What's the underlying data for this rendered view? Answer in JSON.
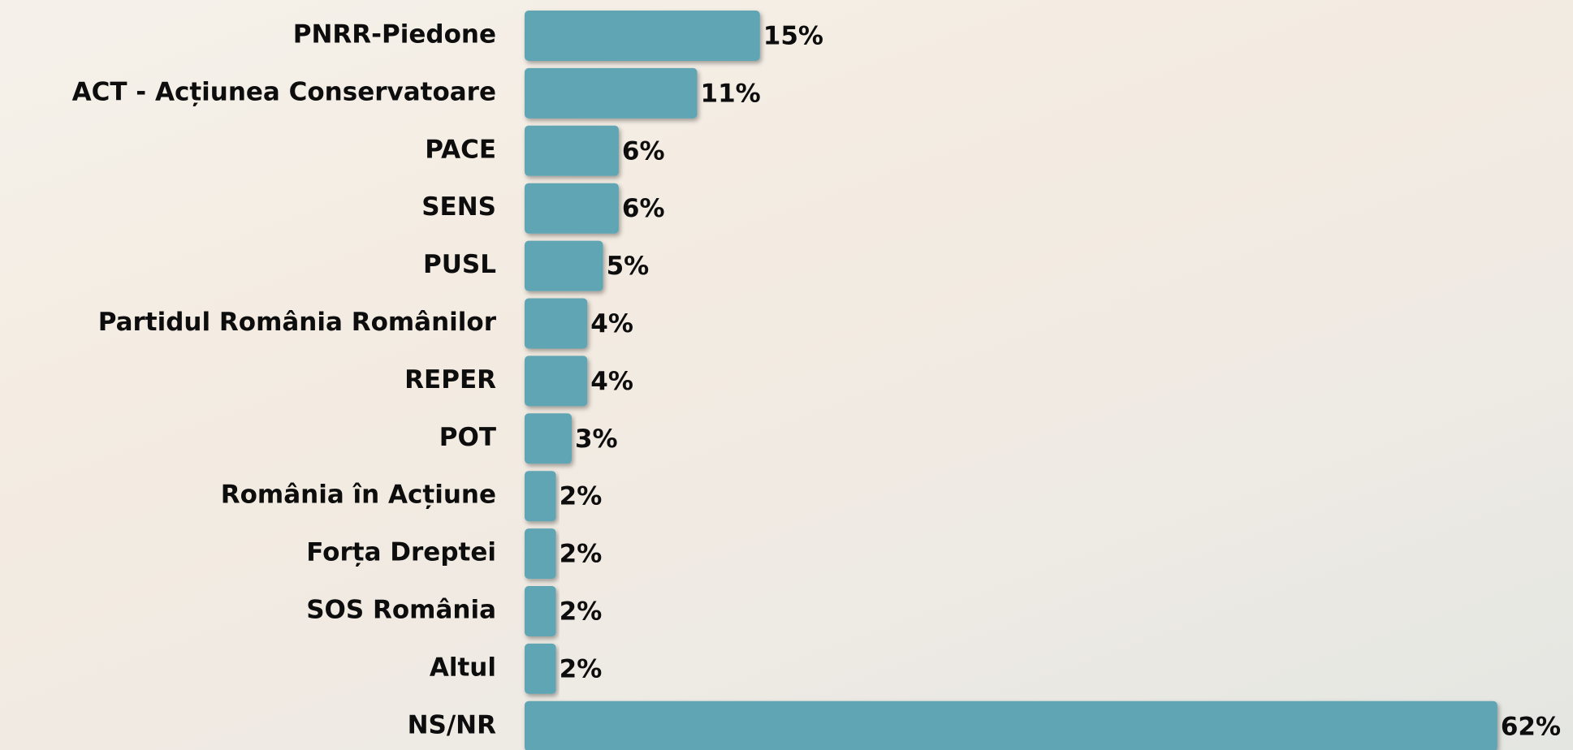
{
  "chart_data": {
    "type": "barh",
    "categories": [
      "PNRR-Piedone",
      "ACT - Acțiunea Conservatoare",
      "PACE",
      "SENS",
      "PUSL",
      "Partidul România Românilor",
      "REPER",
      "POT",
      "România în Acțiune",
      "Forța Dreptei",
      "SOS România",
      "Altul",
      "NS/NR"
    ],
    "values": [
      15,
      11,
      6,
      6,
      5,
      4,
      4,
      3,
      2,
      2,
      2,
      2,
      62
    ],
    "value_labels": [
      "15%",
      "11%",
      "6%",
      "6%",
      "5%",
      "4%",
      "4%",
      "3%",
      "2%",
      "2%",
      "2%",
      "2%",
      "62%"
    ],
    "color": "#5fa5b3"
  }
}
